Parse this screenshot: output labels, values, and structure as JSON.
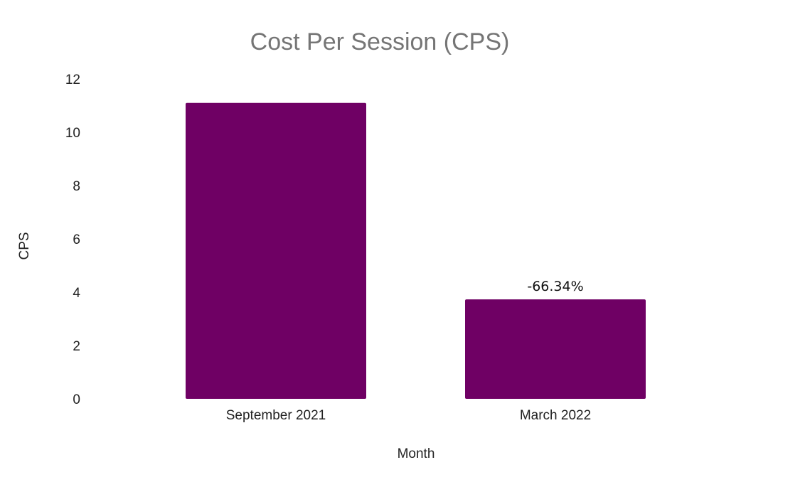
{
  "chart_data": {
    "type": "bar",
    "title": "Cost Per Session (CPS)",
    "xlabel": "Month",
    "ylabel": "CPS",
    "categories": [
      "September 2021",
      "March 2022"
    ],
    "values": [
      11.1,
      3.73
    ],
    "data_labels": [
      "",
      "-66.34%"
    ],
    "ylim": [
      0,
      12
    ],
    "yticks": [
      "0",
      "2",
      "4",
      "6",
      "8",
      "10",
      "12"
    ],
    "grid": false,
    "legend": "none",
    "bar_color": "#6f0064"
  }
}
